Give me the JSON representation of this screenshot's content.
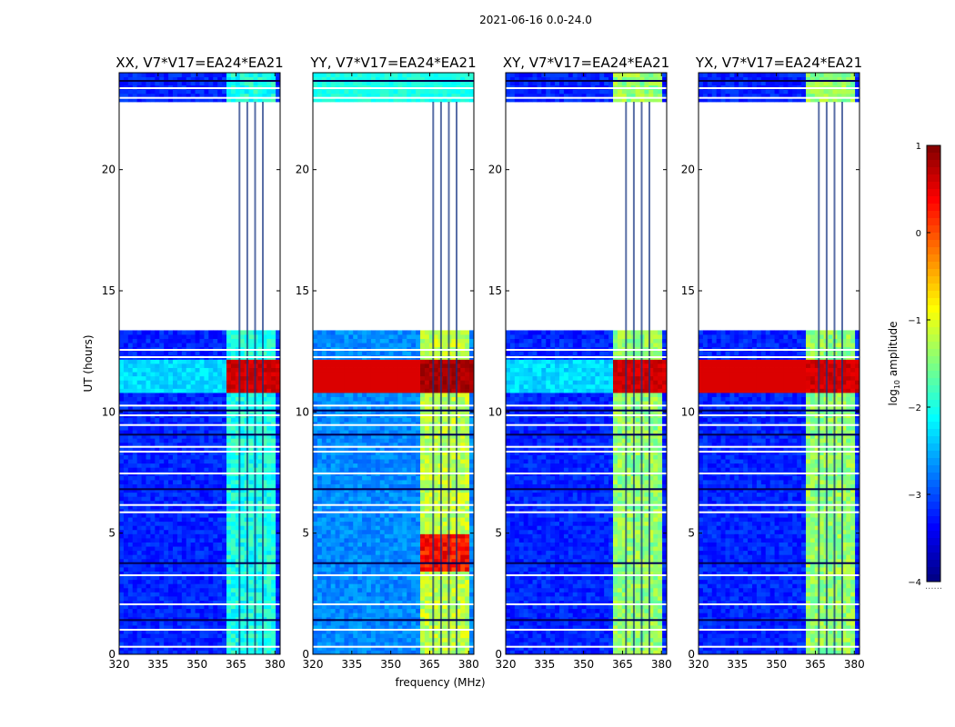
{
  "chart_data": {
    "type": "heatmap",
    "suptitle": "2021-06-16 0.0-24.0",
    "xlabel": "frequency (MHz)",
    "ylabel": "UT (hours)",
    "xlim": [
      320,
      382
    ],
    "ylim": [
      0,
      24
    ],
    "xticks": [
      320,
      335,
      350,
      365,
      380
    ],
    "yticks": [
      0,
      5,
      10,
      15,
      20
    ],
    "xtick_labels": [
      "320",
      "335",
      "350",
      "365",
      "380"
    ],
    "ytick_labels": [
      "0",
      "5",
      "10",
      "15",
      "20"
    ],
    "colormap": "jet",
    "panels": [
      {
        "pol": "XX",
        "title": "XX, V7*V17=EA24*EA21",
        "base_level": -3.2,
        "rfi_band_level": -2.0,
        "strong_burst_level": 0.6
      },
      {
        "pol": "YY",
        "title": "YY, V7*V17=EA24*EA21",
        "base_level": -2.7,
        "rfi_band_level": -1.2,
        "strong_burst_level": 0.8
      },
      {
        "pol": "XY",
        "title": "XY, V7*V17=EA24*EA21",
        "base_level": -3.2,
        "rfi_band_level": -1.4,
        "strong_burst_level": 0.6
      },
      {
        "pol": "YX",
        "title": "YX, V7*V17=EA24*EA21",
        "base_level": -3.2,
        "rfi_band_level": -1.4,
        "strong_burst_level": 0.6
      }
    ],
    "data_gap_hours": [
      13.3,
      22.8
    ],
    "rfi_band_mhz": [
      361,
      380
    ],
    "strong_burst_hours": [
      10.8,
      12.2
    ],
    "colorbar": {
      "label": "log",
      "label_sub": "10",
      "label_rest": " amplitude",
      "min": -4,
      "max": 1,
      "ticks": [
        1,
        0,
        -1,
        -2,
        -3,
        -4
      ],
      "tick_labels": [
        "1",
        "0",
        "−1",
        "−2",
        "−3",
        "−4"
      ],
      "extra_mark": "......"
    }
  }
}
